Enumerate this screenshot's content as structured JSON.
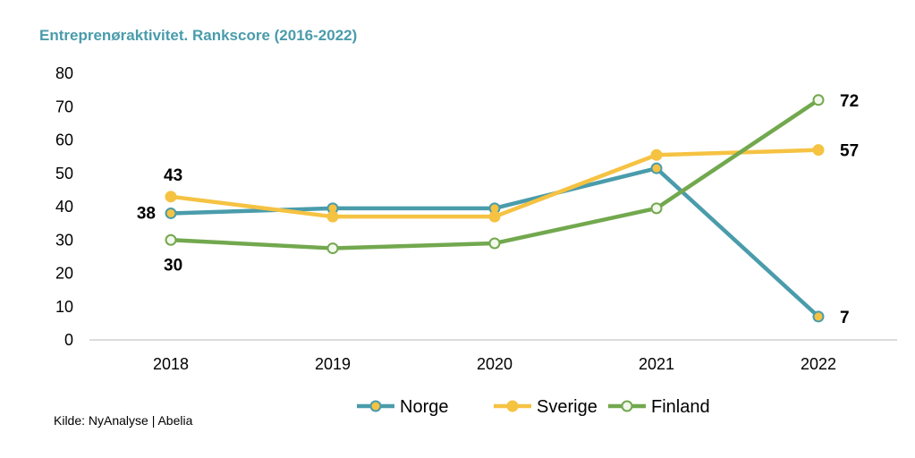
{
  "chart_data": {
    "type": "line",
    "title": "Entreprenøraktivitet. Rankscore (2016-2022)",
    "categories": [
      "2018",
      "2019",
      "2020",
      "2021",
      "2022"
    ],
    "ylim": [
      0,
      80
    ],
    "yticks": [
      "0",
      "10",
      "20",
      "30",
      "40",
      "50",
      "60",
      "70",
      "80"
    ],
    "xlabel": "",
    "ylabel": "",
    "grid": false,
    "legend_position": "bottom",
    "series": [
      {
        "name": "Norge",
        "values": [
          38,
          39.5,
          39.5,
          51.5,
          7
        ],
        "color": "#4a9cab",
        "marker": "#f5c242"
      },
      {
        "name": "Sverige",
        "values": [
          43,
          37,
          37,
          55.5,
          57
        ],
        "color": "#f5c242",
        "marker": "#f5c242"
      },
      {
        "name": "Finland",
        "values": [
          30,
          27.5,
          29,
          39.5,
          72
        ],
        "color": "#72a84e",
        "marker": "#f2f8ec"
      }
    ],
    "annotations": [
      {
        "text": "38",
        "series": "Norge",
        "category": "2018"
      },
      {
        "text": "43",
        "series": "Sverige",
        "category": "2018"
      },
      {
        "text": "30",
        "series": "Finland",
        "category": "2018"
      },
      {
        "text": "72",
        "series": "Finland",
        "category": "2022"
      },
      {
        "text": "57",
        "series": "Sverige",
        "category": "2022"
      },
      {
        "text": "7",
        "series": "Norge",
        "category": "2022"
      }
    ]
  },
  "source": "Kilde: NyAnalyse  |  Abelia"
}
